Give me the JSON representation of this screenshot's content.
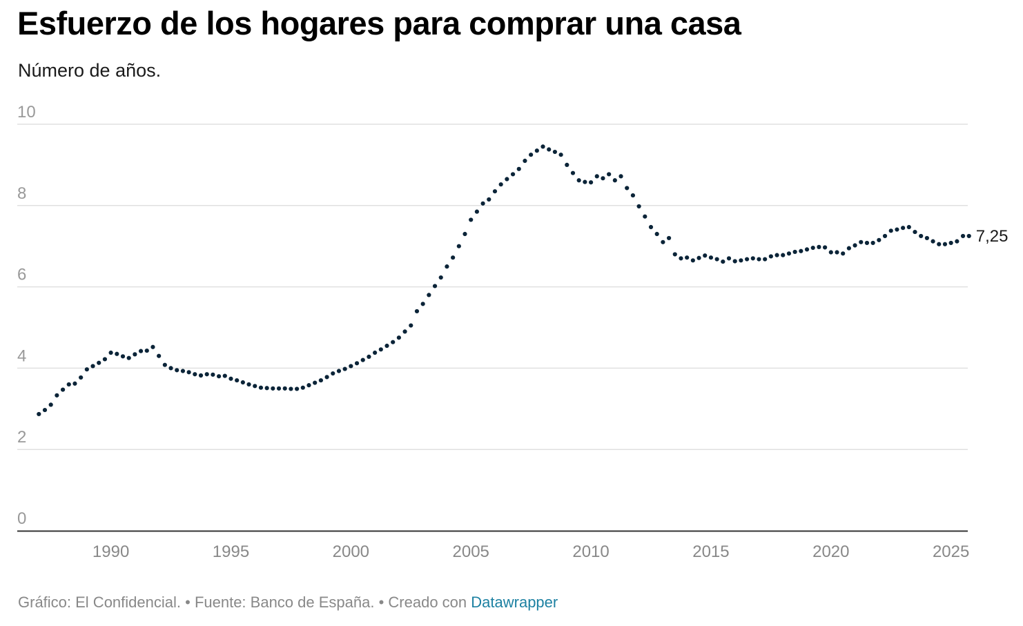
{
  "title": "Esfuerzo de los hogares para comprar una casa",
  "subtitle": "Número de años.",
  "footer": {
    "credit": "Gráfico: El Confidencial.",
    "separator": " • ",
    "source": "Fuente: Banco de España.",
    "created_with": "Creado con",
    "link_label": "Datawrapper"
  },
  "colors": {
    "series": "#0b2438",
    "grid": "#e0e0e0",
    "axis": "#333333",
    "tick_label": "#999999",
    "link": "#1d81a2"
  },
  "chart_data": {
    "type": "scatter",
    "xlabel": "",
    "ylabel": "",
    "xlim": [
      1986.1,
      2025.7
    ],
    "ylim": [
      0,
      10
    ],
    "x_ticks": [
      1990,
      1995,
      2000,
      2005,
      2010,
      2015,
      2020,
      2025
    ],
    "y_ticks": [
      0,
      2,
      4,
      6,
      8,
      10
    ],
    "grid": true,
    "legend": "none",
    "end_label": "7,25",
    "series": [
      {
        "start": 1987.0,
        "step": 0.25,
        "values": [
          2.87,
          2.97,
          3.1,
          3.33,
          3.47,
          3.6,
          3.62,
          3.77,
          3.97,
          4.05,
          4.13,
          4.22,
          4.38,
          4.35,
          4.29,
          4.25,
          4.34,
          4.42,
          4.43,
          4.52,
          4.3,
          4.08,
          4.0,
          3.95,
          3.93,
          3.9,
          3.85,
          3.82,
          3.85,
          3.84,
          3.8,
          3.81,
          3.74,
          3.7,
          3.65,
          3.6,
          3.56,
          3.52,
          3.51,
          3.5,
          3.5,
          3.5,
          3.49,
          3.49,
          3.52,
          3.58,
          3.64,
          3.7,
          3.78,
          3.87,
          3.93,
          3.98,
          4.05,
          4.12,
          4.2,
          4.28,
          4.38,
          4.46,
          4.55,
          4.64,
          4.75,
          4.9,
          5.05,
          5.4,
          5.58,
          5.8,
          6.02,
          6.23,
          6.5,
          6.72,
          7.0,
          7.3,
          7.65,
          7.85,
          8.05,
          8.15,
          8.35,
          8.52,
          8.65,
          8.77,
          8.9,
          9.1,
          9.25,
          9.35,
          9.45,
          9.38,
          9.32,
          9.25,
          9.0,
          8.8,
          8.62,
          8.58,
          8.57,
          8.72,
          8.67,
          8.77,
          8.62,
          8.72,
          8.43,
          8.25,
          7.98,
          7.73,
          7.47,
          7.3,
          7.1,
          7.2,
          6.8,
          6.7,
          6.72,
          6.65,
          6.71,
          6.77,
          6.72,
          6.68,
          6.62,
          6.7,
          6.63,
          6.65,
          6.68,
          6.7,
          6.68,
          6.68,
          6.75,
          6.78,
          6.78,
          6.82,
          6.86,
          6.88,
          6.92,
          6.96,
          6.98,
          6.97,
          6.85,
          6.85,
          6.82,
          6.95,
          7.02,
          7.1,
          7.08,
          7.08,
          7.15,
          7.25,
          7.38,
          7.41,
          7.45,
          7.47,
          7.35,
          7.25,
          7.2,
          7.12,
          7.05,
          7.05,
          7.08,
          7.12,
          7.25,
          7.25
        ]
      }
    ]
  }
}
